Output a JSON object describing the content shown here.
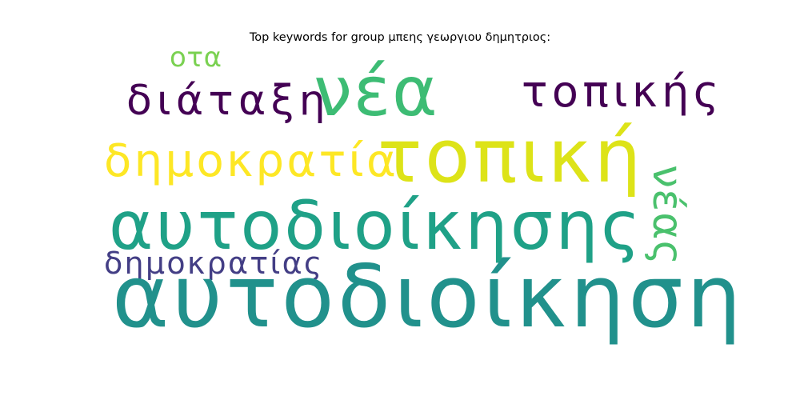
{
  "title": "Top keywords for group μπεης γεωργιου δημητριος:",
  "words": {
    "ota": {
      "text": "οτα",
      "color": "#7ad151"
    },
    "diataxi": {
      "text": "διάταξη",
      "color": "#440154"
    },
    "nea": {
      "text": "νέα",
      "color": "#3dbc74"
    },
    "topikis": {
      "text": "τοπικής",
      "color": "#440154"
    },
    "dimokratia": {
      "text": "δημοκρατία",
      "color": "#fde725"
    },
    "topiki": {
      "text": "τοπική",
      "color": "#dde318"
    },
    "neas": {
      "text": "νέας",
      "color": "#4ac16d"
    },
    "aftodioikisis": {
      "text": "αυτοδιοίκησης",
      "color": "#1fa187"
    },
    "dimokratias": {
      "text": "δημοκρατίας",
      "color": "#433e85"
    },
    "aftodioikisi": {
      "text": "αυτοδιοίκηση",
      "color": "#21918c"
    }
  }
}
